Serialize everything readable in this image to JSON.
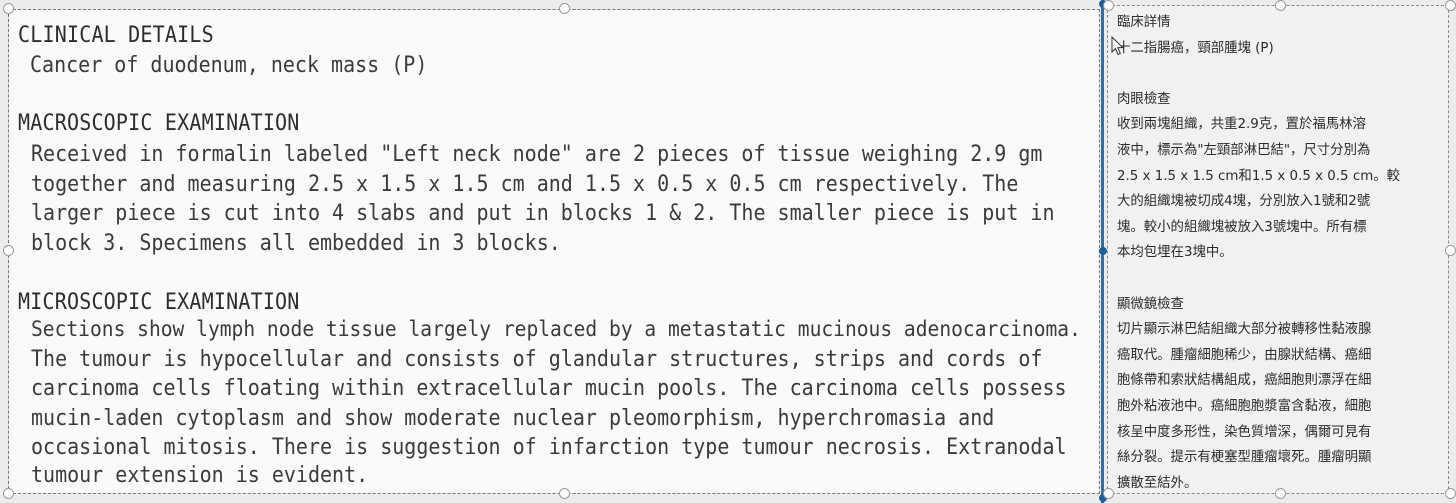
{
  "report": {
    "clinical_heading": "CLINICAL DETAILS",
    "clinical_text": "Cancer of duodenum, neck mass (P)",
    "macro_heading": "MACROSCOPIC EXAMINATION",
    "macro_lines": [
      "Received in formalin labeled \"Left neck node\" are 2 pieces of tissue weighing 2.9 gm",
      "together and measuring 2.5 x 1.5 x 1.5 cm and 1.5 x 0.5 x 0.5 cm respectively.  The",
      "larger piece is cut into 4 slabs and put in blocks 1 & 2.  The smaller piece is put in",
      "block 3.  Specimens all embedded in 3 blocks."
    ],
    "micro_heading": "MICROSCOPIC EXAMINATION",
    "micro_lines": [
      "Sections show lymph node tissue largely replaced by a metastatic mucinous adenocarcinoma.",
      "The tumour is hypocellular and consists of glandular structures, strips and cords of",
      "carcinoma cells floating within extracellular mucin pools.  The carcinoma cells possess",
      "mucin-laden cytoplasm and show moderate nuclear pleomorphism, hyperchromasia and",
      "occasional mitosis.  There is suggestion of infarction type tumour necrosis.  Extranodal",
      "tumour extension is evident."
    ]
  },
  "translation": {
    "clinical_heading": "臨床詳情",
    "clinical_text": "十二指腸癌，頸部腫塊 (P)",
    "macro_heading": "肉眼檢查",
    "macro_lines": [
      "收到兩塊組織，共重2.9克，置於福馬林溶",
      "液中，標示為\"左頸部淋巴結\"，尺寸分別為",
      "2.5 x 1.5 x 1.5 cm和1.5 x 0.5 x 0.5 cm。較",
      "大的組織塊被切成4塊，分別放入1號和2號",
      "塊。較小的組織塊被放入3號塊中。所有標",
      "本均包埋在3塊中。"
    ],
    "micro_heading": "顯微鏡檢查",
    "micro_lines": [
      "切片顯示淋巴結組織大部分被轉移性黏液腺",
      "癌取代。腫瘤細胞稀少，由腺狀結構、癌細",
      "胞條帶和索狀結構組成，癌細胞則漂浮在細",
      "胞外粘液池中。癌細胞胞漿富含黏液，細胞",
      "核呈中度多形性，染色質增深，偶爾可見有",
      "絲分裂。提示有梗塞型腫瘤壞死。腫瘤明顯",
      "擴散至結外。"
    ]
  },
  "icons": {
    "cursor": "mouse-pointer-icon"
  },
  "colors": {
    "accent": "#2f6fa6"
  }
}
